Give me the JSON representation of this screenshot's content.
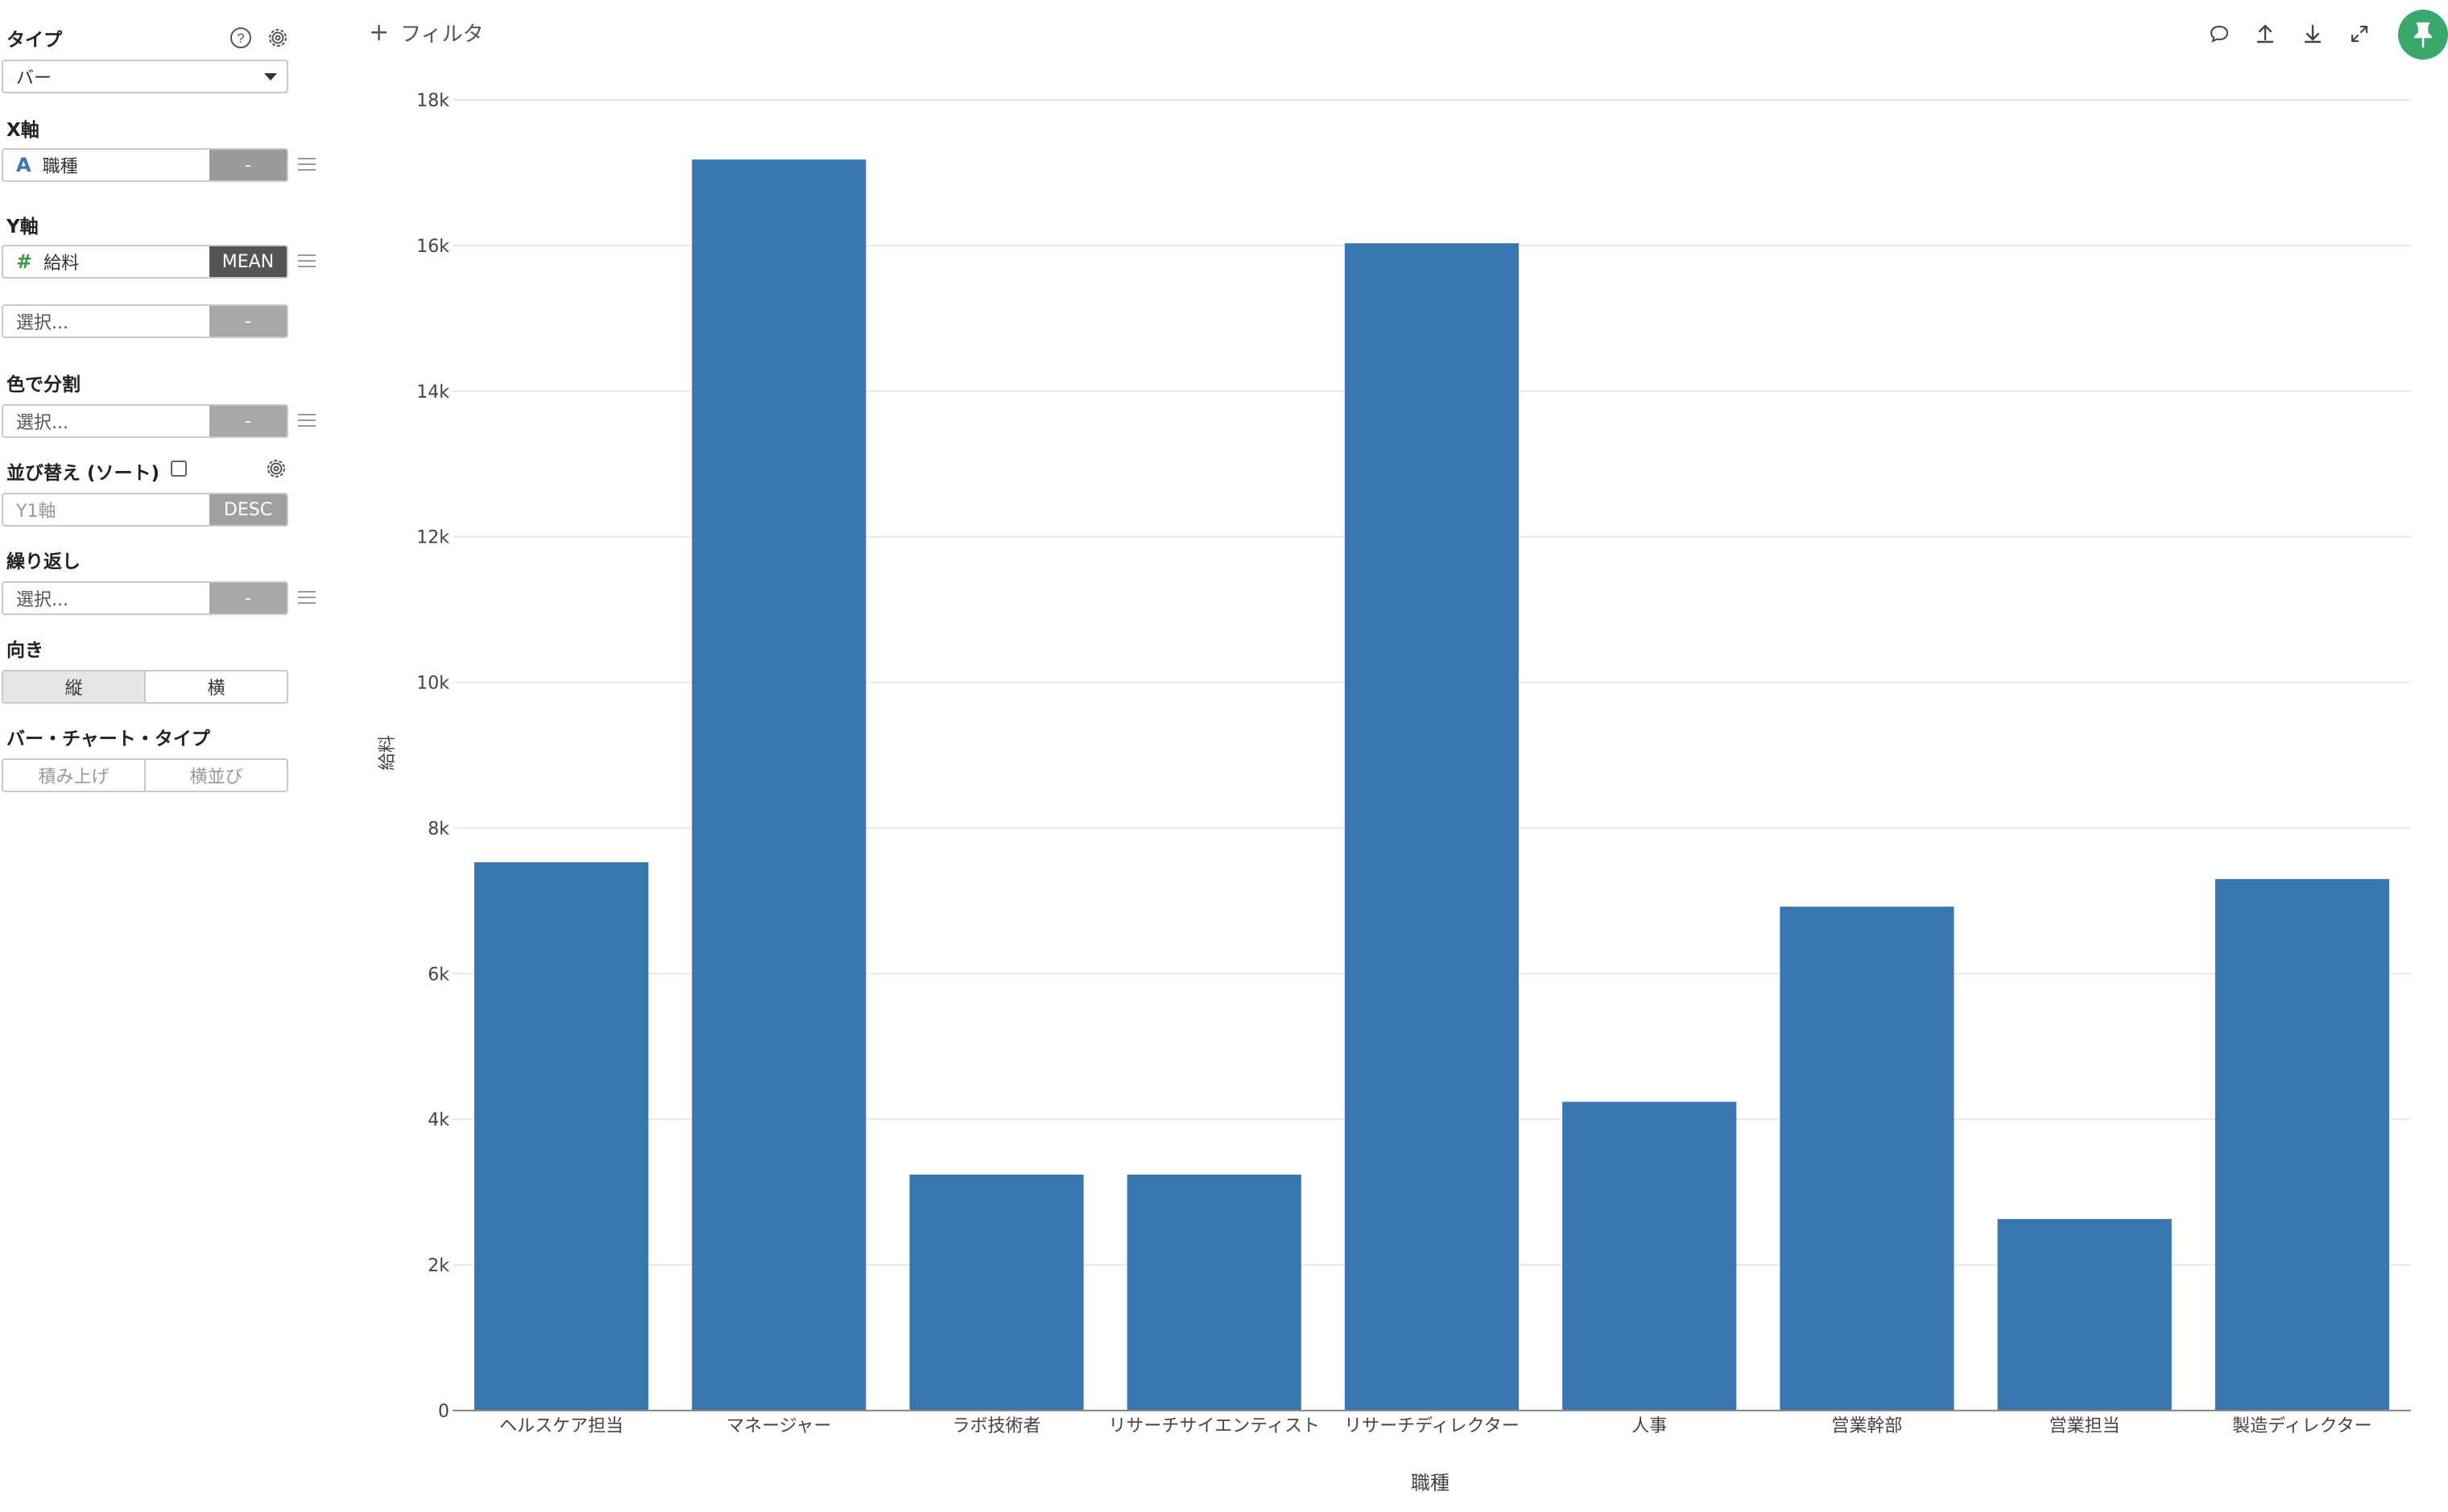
{
  "sidebar": {
    "type_label": "タイプ",
    "type_value": "バー",
    "x_axis_label": "X軸",
    "x_field": "職種",
    "x_field_icon": "A",
    "x_agg": "-",
    "y_axis_label": "Y軸",
    "y_field": "給料",
    "y_field_icon": "#",
    "y_agg": "MEAN",
    "y2_placeholder": "選択...",
    "y2_agg": "-",
    "color_label": "色で分割",
    "color_placeholder": "選択...",
    "color_agg": "-",
    "sort_label": "並び替え (ソート)",
    "sort_field_placeholder": "Y1軸",
    "sort_order": "DESC",
    "repeat_label": "繰り返し",
    "repeat_placeholder": "選択...",
    "repeat_agg": "-",
    "orientation_label": "向き",
    "orientation_vertical": "縦",
    "orientation_horizontal": "横",
    "bar_type_label": "バー・チャート・タイプ",
    "bar_type_stacked": "積み上げ",
    "bar_type_side": "横並び"
  },
  "toolbar": {
    "filter_label": "フィルタ",
    "icons": [
      "comment-icon",
      "upload-icon",
      "download-icon",
      "expand-icon",
      "pin-icon"
    ],
    "pin_color": "#3aa86b"
  },
  "chart_data": {
    "type": "bar",
    "categories": [
      "ヘルスケア担当",
      "マネージャー",
      "ラボ技術者",
      "リサーチサイエンティスト",
      "リサーチディレクター",
      "人事",
      "営業幹部",
      "営業担当",
      "製造ディレクター"
    ],
    "values": [
      7530,
      17180,
      3240,
      3240,
      16030,
      4240,
      6920,
      2630,
      7300
    ],
    "xlabel": "職種",
    "ylabel": "給料",
    "ylim": [
      0,
      18000
    ],
    "yticks": [
      0,
      2000,
      4000,
      6000,
      8000,
      10000,
      12000,
      14000,
      16000,
      18000
    ],
    "ytick_labels": [
      "0",
      "2k",
      "4k",
      "6k",
      "8k",
      "10k",
      "12k",
      "14k",
      "16k",
      "18k"
    ],
    "grid": true,
    "bar_color": "#3a76b0"
  }
}
